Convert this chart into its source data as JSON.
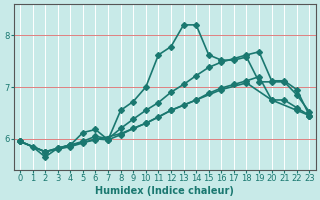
{
  "xlabel": "Humidex (Indice chaleur)",
  "ylabel": "",
  "bg_color": "#c8eae8",
  "line_color": "#1a7870",
  "grid_color_h": "#e08080",
  "grid_color_v": "#ffffff",
  "xlim": [
    -0.5,
    23.5
  ],
  "ylim": [
    5.4,
    8.6
  ],
  "yticks": [
    6,
    7,
    8
  ],
  "xticks": [
    0,
    1,
    2,
    3,
    4,
    5,
    6,
    7,
    8,
    9,
    10,
    11,
    12,
    13,
    14,
    15,
    16,
    17,
    18,
    19,
    20,
    21,
    22,
    23
  ],
  "line1_x": [
    0,
    1,
    2,
    3,
    4,
    5,
    6,
    7,
    8,
    9,
    10,
    11,
    12,
    13,
    14,
    15,
    16,
    17,
    18,
    19,
    20,
    21,
    22,
    23
  ],
  "line1_y": [
    5.95,
    5.85,
    5.65,
    5.82,
    5.88,
    6.12,
    6.18,
    5.98,
    6.55,
    6.72,
    7.0,
    7.62,
    7.78,
    8.2,
    8.2,
    7.62,
    7.52,
    7.52,
    7.58,
    7.1,
    7.1,
    7.1,
    6.85,
    6.52
  ],
  "line2_x": [
    0,
    2,
    3,
    4,
    5,
    6,
    7,
    8,
    9,
    10,
    11,
    12,
    13,
    14,
    15,
    16,
    17,
    18,
    19,
    20,
    21,
    22,
    23
  ],
  "line2_y": [
    5.95,
    5.75,
    5.82,
    5.88,
    5.95,
    6.05,
    6.0,
    6.2,
    6.38,
    6.55,
    6.7,
    6.9,
    7.05,
    7.22,
    7.38,
    7.48,
    7.55,
    7.62,
    7.68,
    7.12,
    7.12,
    6.95,
    6.45
  ],
  "line3_x": [
    0,
    2,
    3,
    4,
    5,
    6,
    7,
    8,
    9,
    10,
    11,
    12,
    13,
    14,
    15,
    16,
    17,
    18,
    19,
    20,
    21,
    22,
    23
  ],
  "line3_y": [
    5.95,
    5.75,
    5.8,
    5.85,
    5.92,
    6.0,
    5.98,
    6.08,
    6.2,
    6.3,
    6.42,
    6.55,
    6.65,
    6.75,
    6.88,
    6.98,
    7.05,
    7.12,
    7.2,
    6.75,
    6.75,
    6.6,
    6.45
  ],
  "line4_x": [
    0,
    2,
    4,
    6,
    8,
    10,
    12,
    14,
    16,
    18,
    20,
    22,
    23
  ],
  "line4_y": [
    5.95,
    5.75,
    5.88,
    5.98,
    6.1,
    6.3,
    6.55,
    6.75,
    6.95,
    7.08,
    6.75,
    6.55,
    6.45
  ],
  "marker": "D",
  "markersize": 3,
  "linewidth": 1.2
}
